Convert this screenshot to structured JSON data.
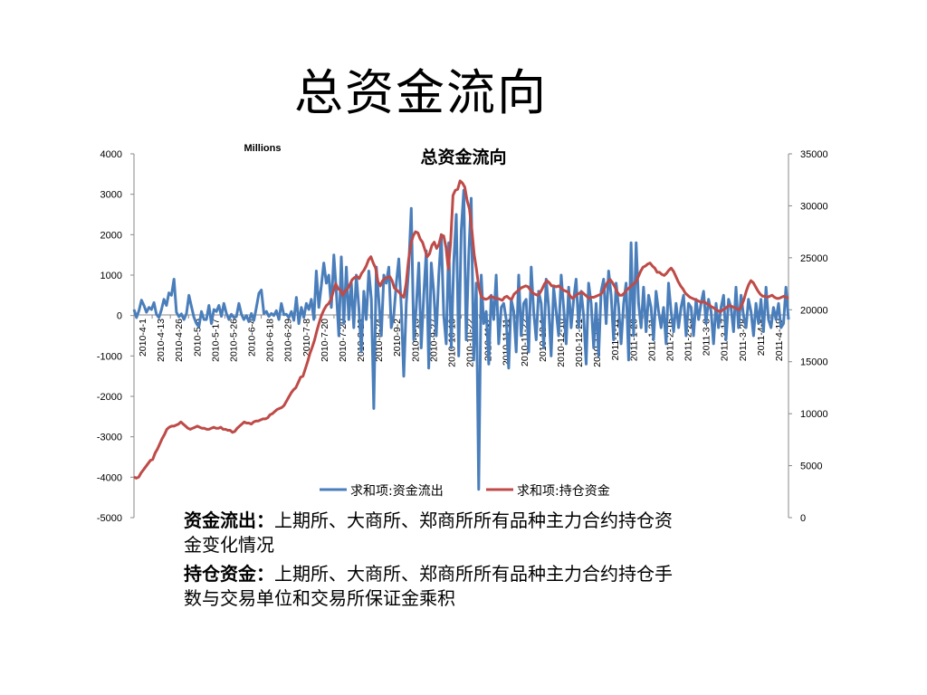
{
  "slide": {
    "title": "总资金流向"
  },
  "chart_data": {
    "type": "line",
    "title": "总资金流向",
    "units_label": "Millions",
    "left_axis": {
      "min": -5000,
      "max": 4000,
      "ticks": [
        "4000",
        "3000",
        "2000",
        "1000",
        "0",
        "-1000",
        "-2000",
        "-3000",
        "-4000",
        "-5000"
      ]
    },
    "right_axis": {
      "min": 0,
      "max": 35000,
      "ticks": [
        "35000",
        "30000",
        "25000",
        "20000",
        "15000",
        "10000",
        "5000",
        "0"
      ]
    },
    "x_tick_labels": [
      "2010-4-1",
      "2010-4-13",
      "2010-4-26",
      "2010-5-6",
      "2010-5-17",
      "2010-5-26",
      "2010-6-4",
      "2010-6-18",
      "2010-6-29",
      "2010-7-8",
      "2010-7-20",
      "2010-7-29",
      "2010-8-13",
      "2010-8-24",
      "2010-9-2",
      "2010-9-13",
      "2010-9-27",
      "2010-10-13",
      "2010-10-22",
      "2010-11-2",
      "2010-11-11",
      "2010-11-22",
      "2010-12-1",
      "2010-12-10",
      "2010-12-21",
      "2010-12-30",
      "2011-1-11",
      "2011-1-20",
      "2011-1-31",
      "2011-2-16",
      "2011-2-25",
      "2011-3-8",
      "2011-3-17",
      "2011-3-28",
      "2011-4-8",
      "2011-4-19"
    ],
    "legend": {
      "position": "bottom"
    },
    "grid": false,
    "series": [
      {
        "name": "求和项:资金流出",
        "axis": "left",
        "color": "#4a7ebb",
        "values": [
          150,
          -50,
          120,
          380,
          250,
          80,
          200,
          150,
          320,
          30,
          -50,
          150,
          400,
          250,
          560,
          500,
          900,
          80,
          -30,
          40,
          -100,
          50,
          500,
          220,
          -40,
          -200,
          -280,
          100,
          -100,
          -100,
          250,
          -200,
          150,
          100,
          250,
          -20,
          300,
          50,
          -100,
          30,
          -50,
          -30,
          300,
          30,
          -100,
          0,
          -150,
          50,
          -120,
          200,
          550,
          630,
          50,
          100,
          -20,
          50,
          0,
          120,
          -100,
          300,
          20,
          30,
          -50,
          100,
          -120,
          450,
          -200,
          200,
          -50,
          300,
          150,
          400,
          -100,
          1100,
          200,
          750,
          1300,
          800,
          1000,
          200,
          1500,
          600,
          -500,
          1450,
          -200,
          1200,
          -100,
          800,
          -300,
          1000,
          200,
          -900,
          600,
          -100,
          1100,
          400,
          -2300,
          1200,
          400,
          -500,
          1000,
          800,
          1200,
          -300,
          0,
          800,
          1400,
          200,
          -1500,
          300,
          1200,
          2650,
          -600,
          200,
          1300,
          -800,
          500,
          1600,
          -1300,
          1300,
          600,
          -500,
          1000,
          2000,
          0,
          -700,
          1800,
          -800,
          1300,
          2500,
          -1000,
          2100,
          3100,
          -600,
          1500,
          2900,
          -1100,
          800,
          -4300,
          1000,
          -200,
          100,
          -1200,
          500,
          -100,
          1000,
          -700,
          200,
          300,
          -100,
          -1300,
          400,
          100,
          -900,
          1000,
          -500,
          300,
          400,
          -900,
          1200,
          100,
          -600,
          600,
          300,
          -800,
          900,
          200,
          -1000,
          700,
          100,
          -500,
          1000,
          200,
          -700,
          700,
          -300,
          400,
          900,
          -300,
          600,
          0,
          -1200,
          800,
          300,
          -800,
          300,
          -1000,
          600,
          900,
          -200,
          1100,
          500,
          -600,
          800,
          200,
          -700,
          300,
          800,
          -1100,
          1800,
          -500,
          1800,
          300,
          -300,
          700,
          -400,
          500,
          200,
          -600,
          600,
          100,
          -300,
          200,
          -700,
          800,
          100,
          -400,
          300,
          -300,
          200,
          500,
          -500,
          300,
          200,
          -500,
          400,
          -100,
          300,
          600,
          -200,
          400,
          100,
          -700,
          300,
          -300,
          200,
          500,
          -600,
          400,
          200,
          -400,
          700,
          -300,
          500,
          0,
          -300,
          400,
          100,
          -500,
          300,
          -200,
          400,
          -400,
          700,
          -100,
          -300,
          200,
          -100,
          300,
          -300,
          -200,
          700,
          -100
        ]
      },
      {
        "name": "求和项:持仓资金",
        "axis": "right",
        "color": "#be4b48",
        "values": [
          3900,
          3800,
          3900,
          4300,
          4600,
          4900,
          5200,
          5500,
          5600,
          6200,
          6600,
          7100,
          7600,
          8000,
          8500,
          8700,
          8800,
          8800,
          8900,
          9000,
          9200,
          9000,
          8800,
          8600,
          8500,
          8600,
          8700,
          8800,
          8700,
          8600,
          8600,
          8500,
          8500,
          8600,
          8700,
          8600,
          8600,
          8700,
          8500,
          8500,
          8400,
          8400,
          8200,
          8300,
          8600,
          8800,
          9000,
          9200,
          9100,
          9100,
          9000,
          9200,
          9300,
          9300,
          9400,
          9500,
          9500,
          9600,
          9900,
          10000,
          10200,
          10400,
          10500,
          10600,
          10800,
          11200,
          11600,
          12000,
          12300,
          12500,
          13000,
          13500,
          13600,
          14300,
          15000,
          15800,
          16400,
          17100,
          18000,
          18800,
          19500,
          20000,
          20400,
          20600,
          21000,
          21800,
          22500,
          22000,
          21900,
          21400,
          21800,
          22000,
          22400,
          22900,
          23100,
          23200,
          23000,
          23500,
          23800,
          24200,
          24800,
          25100,
          24500,
          24000,
          22700,
          22300,
          22800,
          23000,
          23100,
          23200,
          22800,
          22100,
          21900,
          21700,
          21400,
          21200,
          22500,
          24700,
          26300,
          27100,
          27500,
          27400,
          26800,
          26500,
          25800,
          25100,
          25400,
          26200,
          26500,
          25900,
          26300,
          27200,
          27100,
          26000,
          23900,
          26500,
          31000,
          31500,
          31600,
          32400,
          32200,
          31800,
          30500,
          29700,
          27700,
          25300,
          23900,
          22200,
          21300,
          21100,
          21000,
          21100,
          21300,
          21200,
          21100,
          21100,
          21000,
          20900,
          21200,
          21300,
          21100,
          21000,
          21500,
          21700,
          21900,
          22100,
          22200,
          22300,
          22200,
          21900,
          21600,
          21500,
          21400,
          21600,
          22000,
          22500,
          22800,
          22600,
          22300,
          22300,
          22200,
          22300,
          22100,
          21900,
          21800,
          21700,
          21300,
          21100,
          21300,
          21500,
          21600,
          21700,
          21500,
          21300,
          21100,
          21200,
          21200,
          21300,
          21400,
          21500,
          21800,
          22300,
          22700,
          22900,
          22600,
          22200,
          21700,
          21400,
          21400,
          21600,
          21900,
          22100,
          22300,
          22500,
          22700,
          23200,
          23700,
          24100,
          24200,
          24400,
          24500,
          24200,
          24000,
          23600,
          23600,
          23400,
          23300,
          23500,
          23800,
          24000,
          23700,
          23200,
          22700,
          22300,
          22000,
          21600,
          21400,
          21200,
          21100,
          21000,
          20900,
          20800,
          20700,
          20800,
          20600,
          20500,
          20300,
          20200,
          20000,
          19900,
          19800,
          20000,
          20100,
          20300,
          20400,
          20300,
          20200,
          20100,
          20000,
          20400,
          21000,
          21800,
          22400,
          22800,
          22600,
          22200,
          21800,
          21500,
          21300,
          21300,
          21200,
          21300,
          21400,
          21200,
          21100,
          21100,
          21200,
          21300,
          21200,
          21100
        ]
      }
    ]
  },
  "notes": [
    {
      "term": "资金流出：",
      "text": "上期所、大商所、郑商所所有品种主力合约持仓资金变化情况"
    },
    {
      "term": "持仓资金：",
      "text": "上期所、大商所、郑商所所有品种主力合约持仓手数与交易单位和交易所保证金乘积"
    }
  ]
}
